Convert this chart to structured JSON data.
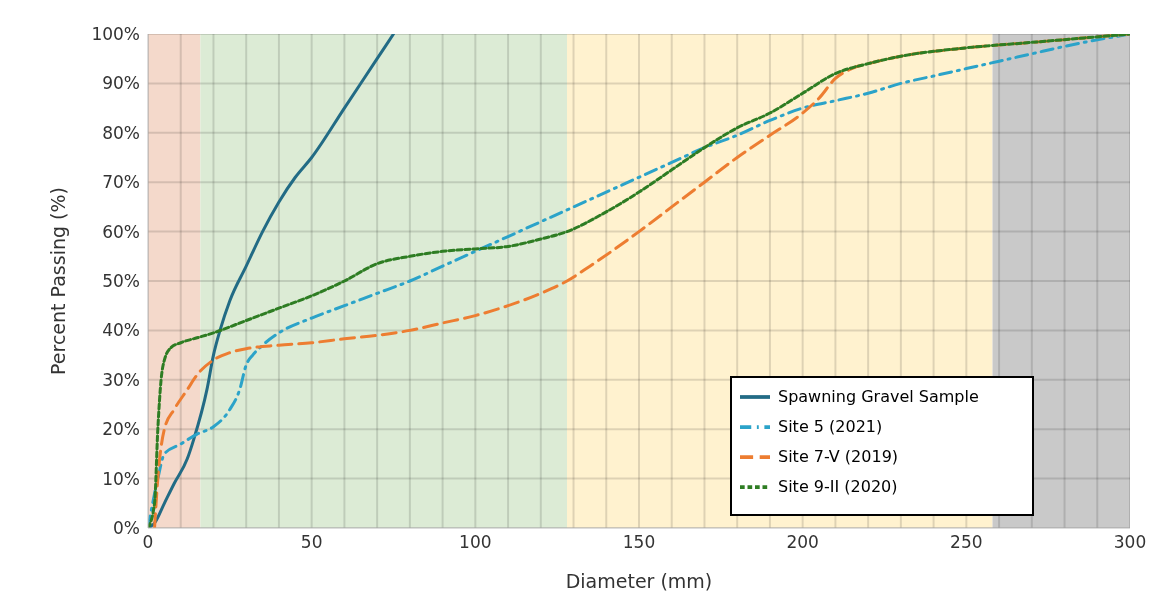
{
  "chart_data": {
    "type": "line",
    "xlabel": "Diameter (mm)",
    "ylabel": "Percent Passing (%)",
    "xlim": [
      0,
      300
    ],
    "ylim": [
      0,
      100
    ],
    "xticks": [
      0,
      {
        "value": 10,
        "label": null
      },
      {
        "value": 20,
        "label": null
      },
      {
        "value": 30,
        "label": null
      },
      {
        "value": 40,
        "label": null
      },
      50,
      {
        "value": 60,
        "label": null
      },
      {
        "value": 70,
        "label": null
      },
      {
        "value": 80,
        "label": null
      },
      {
        "value": 90,
        "label": null
      },
      100,
      {
        "value": 110,
        "label": null
      },
      {
        "value": 120,
        "label": null
      },
      {
        "value": 130,
        "label": null
      },
      {
        "value": 140,
        "label": null
      },
      150,
      {
        "value": 160,
        "label": null
      },
      {
        "value": 170,
        "label": null
      },
      {
        "value": 180,
        "label": null
      },
      {
        "value": 190,
        "label": null
      },
      200,
      {
        "value": 210,
        "label": null
      },
      {
        "value": 220,
        "label": null
      },
      {
        "value": 230,
        "label": null
      },
      {
        "value": 240,
        "label": null
      },
      250,
      {
        "value": 260,
        "label": null
      },
      {
        "value": 270,
        "label": null
      },
      {
        "value": 280,
        "label": null
      },
      {
        "value": 290,
        "label": null
      },
      300
    ],
    "yticks": [
      {
        "value": 0,
        "label": "0%"
      },
      {
        "value": 10,
        "label": "10%"
      },
      {
        "value": 20,
        "label": "20%"
      },
      {
        "value": 30,
        "label": "30%"
      },
      {
        "value": 40,
        "label": "40%"
      },
      {
        "value": 50,
        "label": "50%"
      },
      {
        "value": 60,
        "label": "60%"
      },
      {
        "value": 70,
        "label": "70%"
      },
      {
        "value": 80,
        "label": "80%"
      },
      {
        "value": 90,
        "label": "90%"
      },
      {
        "value": 100,
        "label": "100%"
      }
    ],
    "grid": true,
    "legend": "bottom right",
    "marker": "none",
    "bands": [
      {
        "axis": "x",
        "from": 0,
        "to": 16,
        "color": "#f4d9cb"
      },
      {
        "axis": "x",
        "from": 16,
        "to": 128,
        "color": "#dcebd5"
      },
      {
        "axis": "x",
        "from": 128,
        "to": 258,
        "color": "#fff2cf"
      },
      {
        "axis": "x",
        "from": 258,
        "to": 300,
        "color": "#c9c9c9"
      }
    ],
    "series": [
      {
        "name": "Spawning Gravel Sample",
        "color": "#226b85",
        "line_style": "solid",
        "x": [
          0,
          2,
          5,
          8,
          12,
          14,
          18,
          20,
          22,
          25,
          30,
          35,
          40,
          45,
          50,
          60,
          70,
          75
        ],
        "values": [
          0,
          1,
          5,
          9,
          14,
          18,
          28,
          35,
          40,
          46,
          53,
          60,
          66,
          71,
          75,
          85,
          95,
          100
        ]
      },
      {
        "name": "Site 5 (2021)",
        "color": "#2ba3c9",
        "line_style": "dashdot",
        "x": [
          0,
          3,
          5,
          10,
          15,
          20,
          25,
          28,
          30,
          32,
          35,
          40,
          50,
          60,
          70,
          80,
          90,
          100,
          110,
          120,
          130,
          140,
          150,
          160,
          170,
          180,
          190,
          200,
          210,
          220,
          230,
          240,
          250,
          260,
          270,
          280,
          300
        ],
        "values": [
          0,
          10,
          15,
          17,
          19,
          20.5,
          24,
          28,
          33,
          35,
          37,
          39.5,
          42.5,
          45,
          47.5,
          50,
          53,
          56,
          59,
          62,
          65,
          68,
          71,
          74,
          77,
          79.5,
          82.5,
          85,
          86.5,
          88,
          90,
          91.5,
          93,
          94.5,
          96,
          97.5,
          100
        ]
      },
      {
        "name": "Site 7-V (2019)",
        "color": "#ed7d31",
        "line_style": "dashed",
        "x": [
          2,
          3,
          5,
          8,
          12,
          15,
          20,
          25,
          30,
          40,
          50,
          60,
          70,
          80,
          90,
          100,
          110,
          120,
          128,
          135,
          150,
          160,
          170,
          180,
          190,
          200,
          205,
          210,
          215,
          220,
          230,
          250,
          270,
          300
        ],
        "values": [
          0,
          10,
          20,
          24,
          28,
          31,
          34,
          35.5,
          36.3,
          37,
          37.5,
          38.3,
          39,
          40,
          41.5,
          43,
          45,
          47.5,
          50,
          53,
          60,
          65,
          70,
          75,
          79.5,
          84,
          87,
          91,
          93,
          94,
          95.5,
          97.2,
          98.3,
          100
        ]
      },
      {
        "name": "Site 9-II (2020)",
        "color": "#2e7d23",
        "line_style": "dotted",
        "x": [
          0,
          2,
          3,
          4,
          5,
          7,
          10,
          15,
          20,
          30,
          40,
          50,
          60,
          70,
          80,
          90,
          100,
          110,
          120,
          128,
          140,
          150,
          160,
          170,
          180,
          190,
          200,
          210,
          220,
          230,
          250,
          270,
          300
        ],
        "values": [
          0,
          5,
          20,
          30,
          34,
          36.5,
          37.5,
          38.5,
          39.5,
          42,
          44.5,
          47,
          50,
          53.5,
          55,
          56,
          56.5,
          57,
          58.5,
          60,
          64,
          68,
          72.5,
          77,
          81,
          84,
          88,
          92,
          94,
          95.5,
          97.2,
          98.3,
          100
        ]
      }
    ]
  }
}
